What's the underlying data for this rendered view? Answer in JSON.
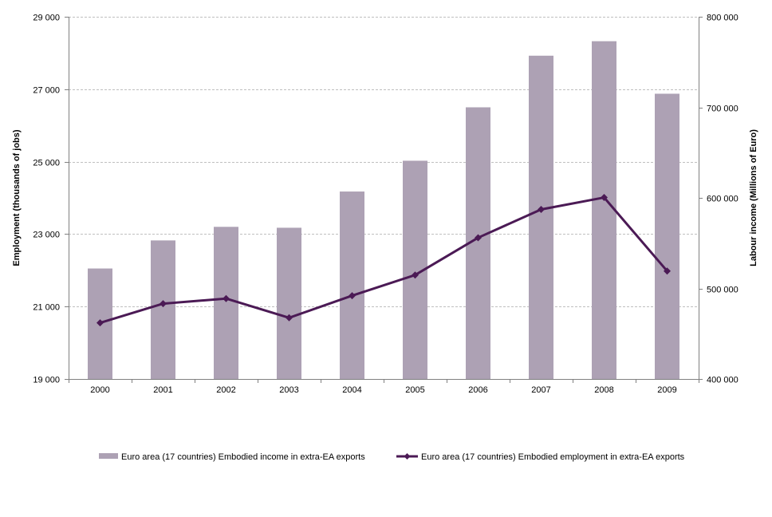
{
  "chart_data": {
    "type": "bar",
    "title": "",
    "categories": [
      "2000",
      "2001",
      "2002",
      "2003",
      "2004",
      "2005",
      "2006",
      "2007",
      "2008",
      "2009"
    ],
    "series": [
      {
        "name": "Euro area (17 countries) Embodied income in extra-EA exports",
        "type": "bar",
        "axis": "right",
        "color": "#ADA1B4",
        "values": [
          522000,
          553000,
          568000,
          567000,
          607000,
          641000,
          700000,
          757000,
          773000,
          715000
        ]
      },
      {
        "name": "Euro area (17 countries) Embodied employment in extra-EA exports",
        "type": "line",
        "axis": "left",
        "color": "#4B1A55",
        "marker": "diamond",
        "values": [
          20550,
          21080,
          21220,
          20690,
          21300,
          21870,
          22900,
          23680,
          24010,
          21980
        ]
      }
    ],
    "left_axis": {
      "label": "Employment (thousands of jobs)",
      "ylim": [
        19000,
        29000
      ],
      "ticks": [
        19000,
        21000,
        23000,
        25000,
        27000,
        29000
      ],
      "tick_labels": [
        "19 000",
        "21 000",
        "23 000",
        "25 000",
        "27 000",
        "29 000"
      ]
    },
    "right_axis": {
      "label": "Labour income (Millions of Euro)",
      "ylim": [
        400000,
        800000
      ],
      "ticks": [
        400000,
        500000,
        600000,
        700000,
        800000
      ],
      "tick_labels": [
        "400 000",
        "500 000",
        "600 000",
        "700 000",
        "800 000"
      ]
    },
    "grid": true,
    "gridline_color": "#BFBFBF",
    "legend_position": "bottom"
  }
}
